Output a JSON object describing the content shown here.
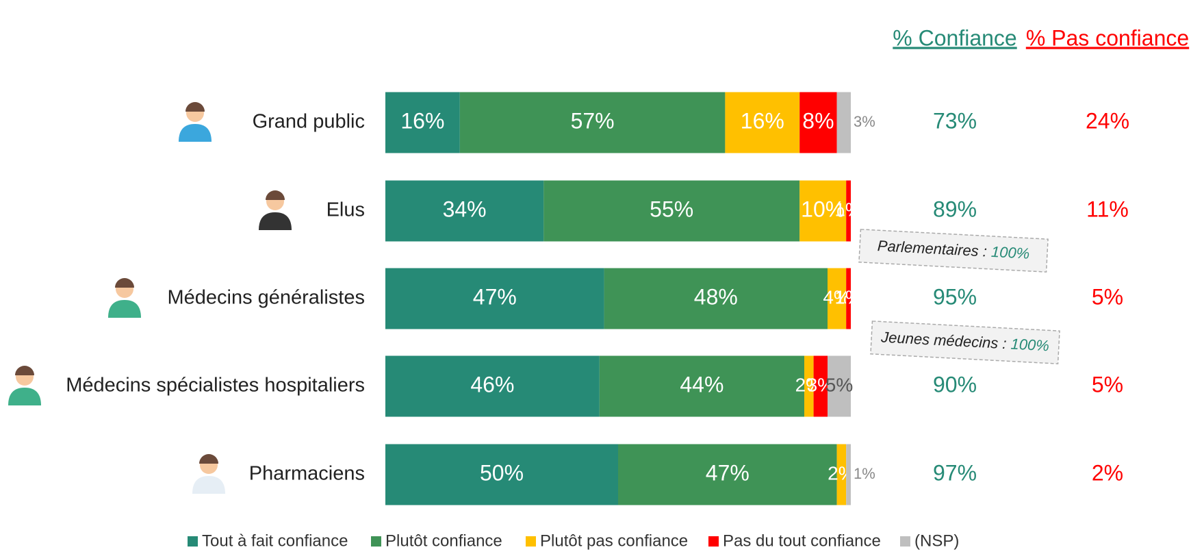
{
  "chart_data": {
    "type": "stacked-bar",
    "categories": [
      "Grand public",
      "Elus",
      "Médecins généralistes",
      "Médecins spécialistes hospitaliers",
      "Pharmaciens"
    ],
    "xlim": [
      0,
      100
    ],
    "series": [
      {
        "name": "Tout à fait confiance",
        "color": "#268a76",
        "values": [
          16,
          34,
          47,
          46,
          50
        ],
        "value_labels": [
          "16%",
          "34%",
          "47%",
          "46%",
          "50%"
        ]
      },
      {
        "name": "Plutôt confiance",
        "color": "#3f9356",
        "values": [
          57,
          55,
          48,
          44,
          47
        ],
        "value_labels": [
          "57%",
          "55%",
          "48%",
          "44%",
          "47%"
        ]
      },
      {
        "name": "Plutôt pas confiance",
        "color": "#ffc000",
        "values": [
          16,
          10,
          4,
          2,
          2
        ],
        "value_labels": [
          "16%",
          "10%",
          "4%",
          "2%",
          "2%"
        ]
      },
      {
        "name": "Pas du tout confiance",
        "color": "#ff0000",
        "values": [
          8,
          1,
          1,
          3,
          null
        ],
        "value_labels": [
          "8%",
          "1%",
          "1%",
          "3%",
          null
        ]
      },
      {
        "name": "(NSP)",
        "color": "#bfbfbf",
        "values": [
          3,
          null,
          null,
          5,
          1
        ],
        "value_labels": [
          "3%",
          null,
          null,
          "5%",
          "1%"
        ]
      }
    ],
    "summary_columns": [
      {
        "title": "% Confiance",
        "color": "#268a76",
        "values": [
          73,
          89,
          95,
          90,
          97
        ],
        "value_labels": [
          "73%",
          "89%",
          "95%",
          "90%",
          "97%"
        ]
      },
      {
        "title": "% Pas confiance",
        "color": "#ff0000",
        "values": [
          24,
          11,
          5,
          5,
          2
        ],
        "value_labels": [
          "24%",
          "11%",
          "5%",
          "5%",
          "2%"
        ]
      }
    ],
    "annotations": [
      {
        "text": "Parlementaires :",
        "label": "100%"
      },
      {
        "text": "Jeunes médecins :",
        "label": "100%"
      }
    ]
  }
}
